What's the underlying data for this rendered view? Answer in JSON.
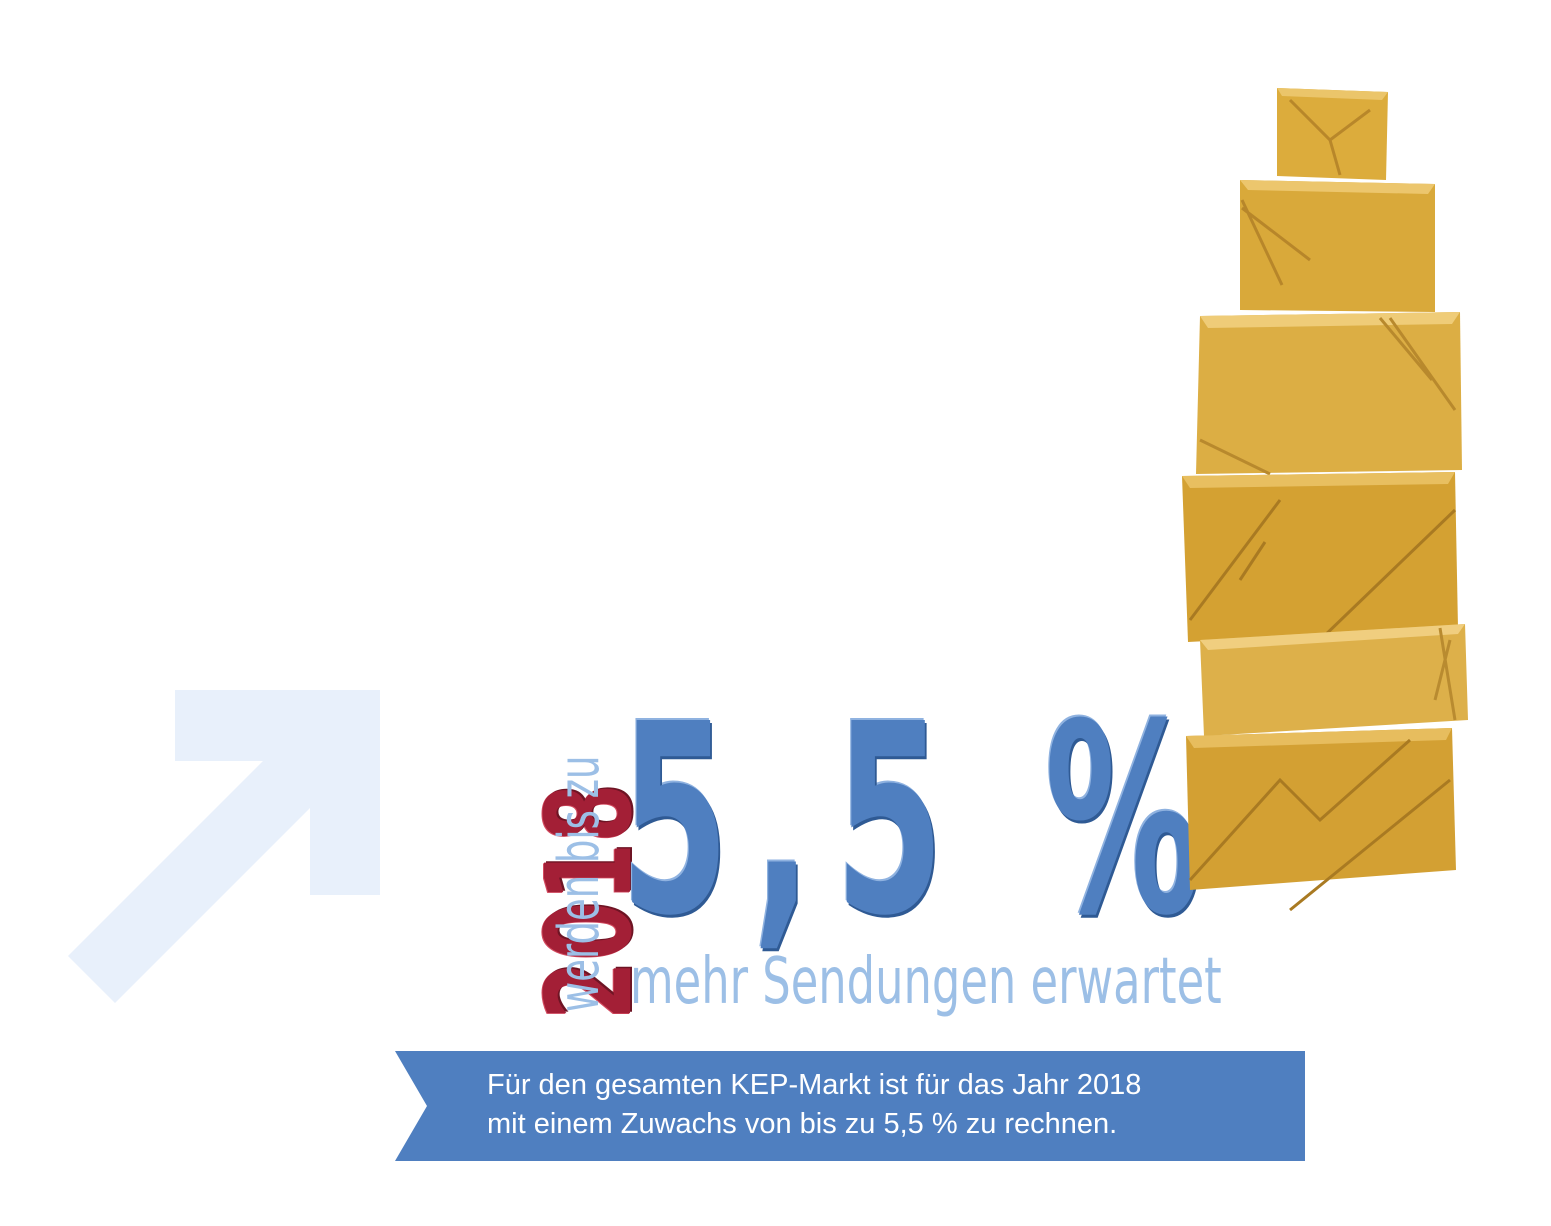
{
  "headline": {
    "year": "2018",
    "intro": "werden bis zu",
    "percent": "5,5 %",
    "subline": "mehr Sendungen erwartet"
  },
  "banner": {
    "line1": "Für den gesamten KEP-Markt ist für das Jahr 2018",
    "line2": "mit einem Zuwachs von bis zu 5,5 % zu rechnen."
  },
  "colors": {
    "year": "#a31f36",
    "accent_blue": "#4f7fc0",
    "light_blue": "#9cbfe6",
    "arrow": "#e8f0fb",
    "banner": "#4f7fc0",
    "parcel": "#d9a93a"
  },
  "graphics": {
    "arrow": "growth-arrow-icon",
    "parcels": "parcel-stack-illustration"
  }
}
